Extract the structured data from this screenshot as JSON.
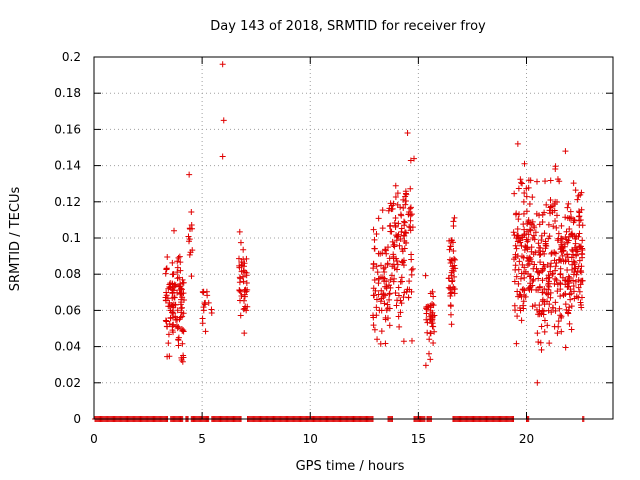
{
  "chart_data": {
    "type": "scatter",
    "title": "Day 143 of 2018, SRMTID for receiver froy",
    "xlabel": "GPS time / hours",
    "ylabel": "SRMTID / TECUs",
    "xlim": [
      0,
      24
    ],
    "ylim": [
      0,
      0.2
    ],
    "x_ticks": [
      0,
      5,
      10,
      15,
      20
    ],
    "x_tick_labels": [
      "0",
      "5",
      "10",
      "15",
      "20"
    ],
    "y_ticks": [
      0,
      0.02,
      0.04,
      0.06,
      0.08,
      0.1,
      0.12,
      0.14,
      0.16,
      0.18,
      0.2
    ],
    "y_tick_labels": [
      "0",
      "0.02",
      "0.04",
      "0.06",
      "0.08",
      "0.1",
      "0.12",
      "0.14",
      "0.16",
      "0.18",
      "0.2"
    ],
    "grid": true,
    "marker": "+",
    "color": "#e00000",
    "zero_segments": [
      [
        0.05,
        3.4
      ],
      [
        3.55,
        4.1
      ],
      [
        4.25,
        4.35
      ],
      [
        4.5,
        5.3
      ],
      [
        5.45,
        6.8
      ],
      [
        7.1,
        12.9
      ],
      [
        13.6,
        13.8
      ],
      [
        14.8,
        15.3
      ],
      [
        15.4,
        15.6
      ],
      [
        16.6,
        19.4
      ],
      [
        20.0,
        20.1
      ],
      [
        22.6,
        22.65
      ]
    ],
    "clusters": [
      {
        "x": [
          3.3,
          4.2
        ],
        "y": [
          0.022,
          0.104
        ],
        "n": 120
      },
      {
        "x": [
          4.35,
          4.55
        ],
        "y": [
          0.065,
          0.135
        ],
        "n": 12
      },
      {
        "x": [
          5.0,
          5.45
        ],
        "y": [
          0.038,
          0.096
        ],
        "n": 16
      },
      {
        "x": [
          6.7,
          7.1
        ],
        "y": [
          0.039,
          0.111
        ],
        "n": 45
      },
      {
        "x": [
          12.9,
          13.6
        ],
        "y": [
          0.025,
          0.128
        ],
        "n": 70
      },
      {
        "x": [
          13.6,
          14.8
        ],
        "y": [
          0.032,
          0.158
        ],
        "n": 130
      },
      {
        "x": [
          15.3,
          15.75
        ],
        "y": [
          0.02,
          0.088
        ],
        "n": 40
      },
      {
        "x": [
          16.4,
          16.7
        ],
        "y": [
          0.037,
          0.123
        ],
        "n": 45
      },
      {
        "x": [
          19.4,
          20.5
        ],
        "y": [
          0.034,
          0.152
        ],
        "n": 140
      },
      {
        "x": [
          20.5,
          22.1
        ],
        "y": [
          0.02,
          0.148
        ],
        "n": 220
      },
      {
        "x": [
          22.1,
          22.6
        ],
        "y": [
          0.043,
          0.145
        ],
        "n": 80
      }
    ],
    "notable_points": [
      {
        "x": 5.95,
        "y": 0.196
      },
      {
        "x": 6.0,
        "y": 0.165
      },
      {
        "x": 5.95,
        "y": 0.145
      },
      {
        "x": 14.5,
        "y": 0.158
      },
      {
        "x": 19.6,
        "y": 0.152
      },
      {
        "x": 21.8,
        "y": 0.148
      },
      {
        "x": 4.4,
        "y": 0.135
      },
      {
        "x": 3.7,
        "y": 0.104
      },
      {
        "x": 20.5,
        "y": 0.02
      }
    ]
  }
}
